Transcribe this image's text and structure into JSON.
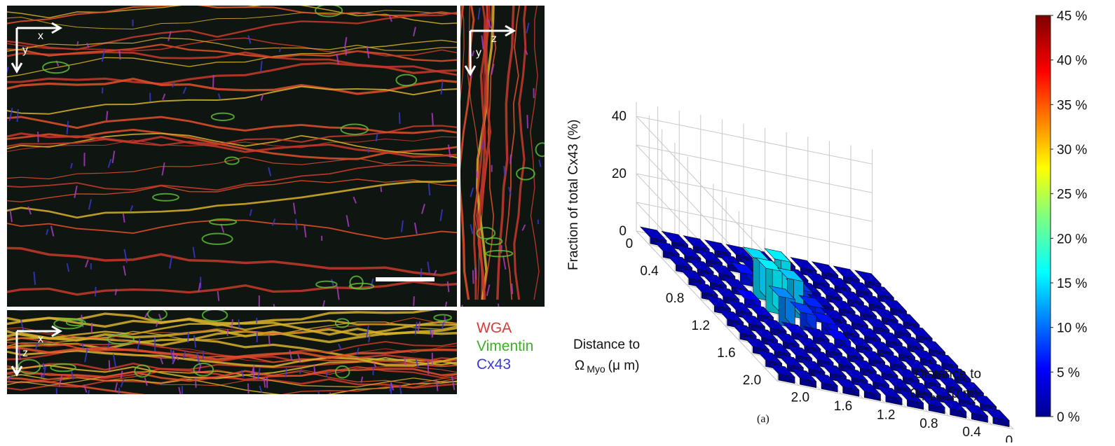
{
  "microscopy": {
    "main_axes": {
      "h": "x",
      "v": "y"
    },
    "side_axes": {
      "h": "z",
      "v": "y"
    },
    "bottom_axes": {
      "h": "x",
      "v": "z"
    },
    "legend": [
      {
        "label": "WGA",
        "color": "#d93a3a"
      },
      {
        "label": "Vimentin",
        "color": "#3fae2a"
      },
      {
        "label": "Cx43",
        "color": "#3a3ad9"
      }
    ]
  },
  "chart_data": {
    "type": "bar3d",
    "zlabel": "Fraction of total Cx43 (%)",
    "z_ticks": [
      "0",
      "20",
      "40"
    ],
    "zlim": [
      0,
      45
    ],
    "myo_axis_label": "Distance to",
    "myo_symbol": "Ω",
    "myo_sub": "Myo",
    "myo_unit": "(μ m)",
    "myo_ticks": [
      "0",
      "0.4",
      "0.8",
      "1.2",
      "1.6",
      "2.0"
    ],
    "fibro_axis_label": "Distance to",
    "fibro_symbol": "Ω",
    "fibro_sub": "Fibro",
    "fibro_unit": "(μ m)",
    "fibro_ticks": [
      "0",
      "0.4",
      "0.8",
      "1.2",
      "1.6",
      "2.0"
    ],
    "myo_bins": [
      0,
      0.2,
      0.4,
      0.6,
      0.8,
      1.0,
      1.2,
      1.4,
      1.6,
      1.8,
      2.0
    ],
    "fibro_bins": [
      0,
      0.2,
      0.4,
      0.6,
      0.8,
      1.0,
      1.2,
      1.4,
      1.6,
      1.8,
      2.0
    ],
    "values": [
      [
        0,
        0,
        0,
        0,
        0,
        0,
        0,
        0,
        0,
        0,
        0
      ],
      [
        0,
        0,
        0,
        0,
        0,
        0,
        0,
        0,
        0,
        0,
        0
      ],
      [
        0,
        0,
        0,
        4,
        4,
        0,
        0,
        0,
        0,
        0,
        0
      ],
      [
        0,
        0,
        0,
        14,
        15,
        6,
        0,
        0,
        0,
        0,
        0
      ],
      [
        0,
        0,
        3,
        15,
        13,
        5,
        0,
        0,
        0,
        0,
        0
      ],
      [
        0,
        0,
        1,
        10,
        6,
        4,
        0,
        0,
        0,
        0,
        0
      ],
      [
        0,
        0,
        0,
        1,
        0,
        3,
        0,
        0,
        0,
        0,
        0
      ],
      [
        0,
        0,
        0,
        0,
        0,
        0,
        0,
        0,
        0,
        0,
        0
      ],
      [
        0,
        0,
        0,
        0,
        0,
        0,
        0,
        0,
        0,
        0,
        0
      ],
      [
        0,
        0,
        0,
        0,
        0,
        0,
        0,
        0,
        0,
        0,
        0
      ],
      [
        0,
        0,
        0,
        0,
        0,
        0,
        0,
        0,
        0,
        0,
        0
      ]
    ],
    "colorbar": {
      "ticks": [
        "0 %",
        "5 %",
        "10 %",
        "15 %",
        "20 %",
        "25 %",
        "30 %",
        "35 %",
        "40 %",
        "45 %"
      ],
      "range": [
        0,
        45
      ]
    },
    "caption": "(a)"
  }
}
